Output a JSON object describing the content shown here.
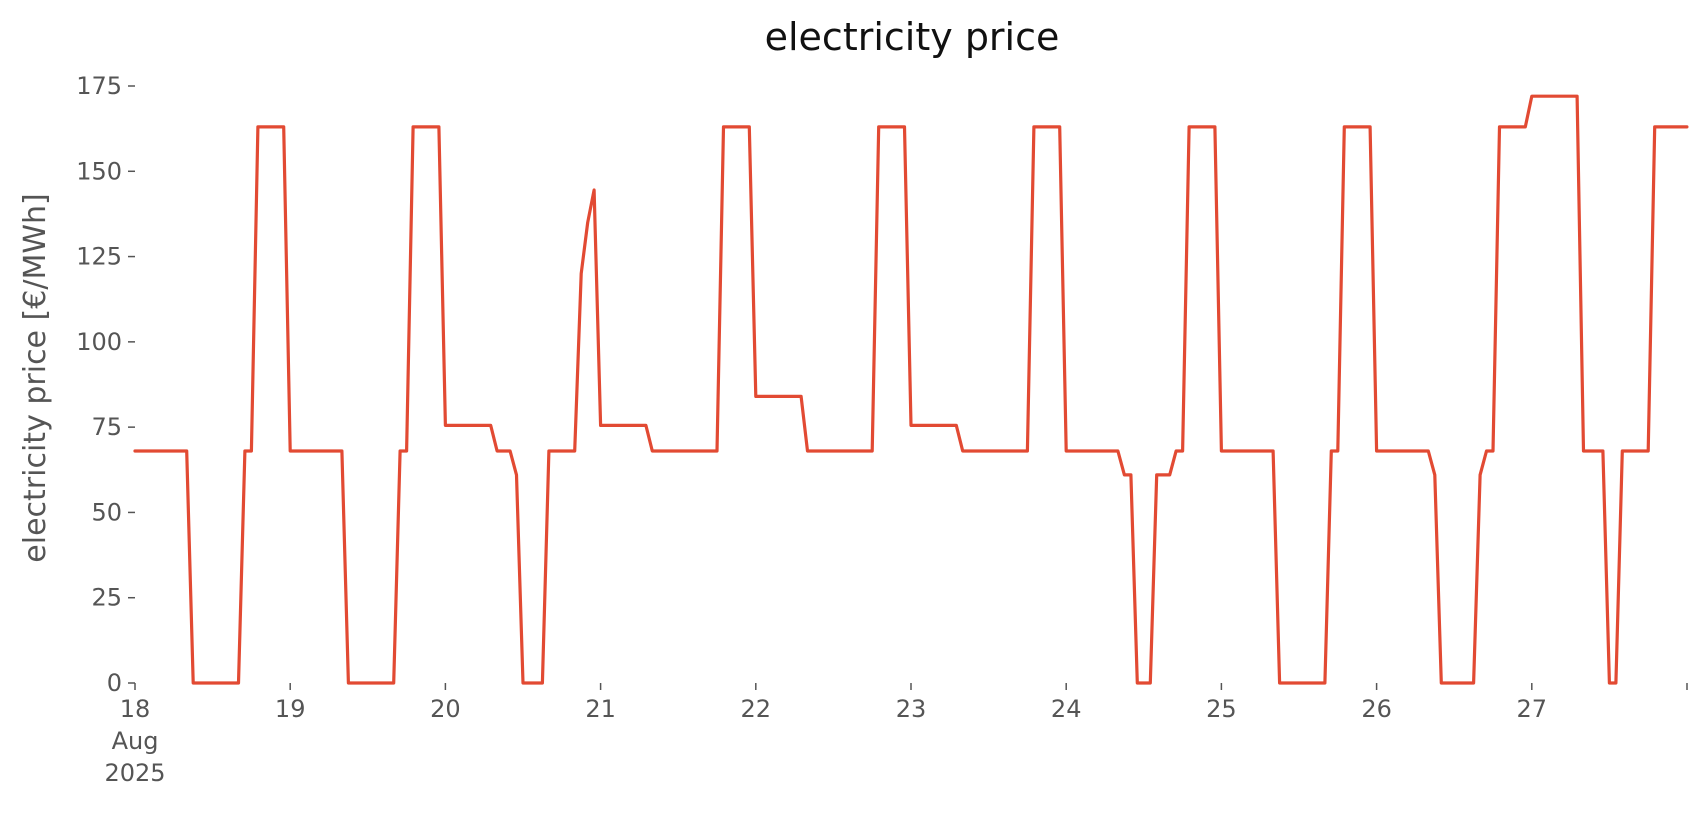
{
  "chart_data": {
    "type": "line",
    "title": "electricity price",
    "xlabel": "",
    "ylabel": "electricity price [€/MWh]",
    "ylim": [
      0,
      175
    ],
    "yticks": [
      0,
      25,
      50,
      75,
      100,
      125,
      150,
      175
    ],
    "xlim": [
      "2025-08-18 00:00",
      "2025-08-28 00:00"
    ],
    "xticks": [
      {
        "value": "2025-08-18",
        "label": [
          "18",
          "Aug",
          "2025"
        ]
      },
      {
        "value": "2025-08-19",
        "label": [
          "19"
        ]
      },
      {
        "value": "2025-08-20",
        "label": [
          "20"
        ]
      },
      {
        "value": "2025-08-21",
        "label": [
          "21"
        ]
      },
      {
        "value": "2025-08-22",
        "label": [
          "22"
        ]
      },
      {
        "value": "2025-08-23",
        "label": [
          "23"
        ]
      },
      {
        "value": "2025-08-24",
        "label": [
          "24"
        ]
      },
      {
        "value": "2025-08-25",
        "label": [
          "25"
        ]
      },
      {
        "value": "2025-08-26",
        "label": [
          "26"
        ]
      },
      {
        "value": "2025-08-27",
        "label": [
          "27"
        ]
      },
      {
        "value": "2025-08-28",
        "label": [
          ""
        ]
      }
    ],
    "grid": false,
    "legend": "none",
    "series": [
      {
        "color": "#e24a33",
        "points": [
          [
            "2025-08-18 00:00",
            68
          ],
          [
            "2025-08-18 08:00",
            68
          ],
          [
            "2025-08-18 09:00",
            0
          ],
          [
            "2025-08-18 16:00",
            0
          ],
          [
            "2025-08-18 17:00",
            68
          ],
          [
            "2025-08-18 18:00",
            68
          ],
          [
            "2025-08-18 19:00",
            163
          ],
          [
            "2025-08-18 23:00",
            163
          ],
          [
            "2025-08-19 00:00",
            68
          ],
          [
            "2025-08-19 08:00",
            68
          ],
          [
            "2025-08-19 09:00",
            0
          ],
          [
            "2025-08-19 16:00",
            0
          ],
          [
            "2025-08-19 17:00",
            68
          ],
          [
            "2025-08-19 18:00",
            68
          ],
          [
            "2025-08-19 19:00",
            163
          ],
          [
            "2025-08-19 23:00",
            163
          ],
          [
            "2025-08-20 00:00",
            75.5
          ],
          [
            "2025-08-20 07:00",
            75.5
          ],
          [
            "2025-08-20 08:00",
            68
          ],
          [
            "2025-08-20 10:00",
            68
          ],
          [
            "2025-08-20 11:00",
            61
          ],
          [
            "2025-08-20 12:00",
            0
          ],
          [
            "2025-08-20 15:00",
            0
          ],
          [
            "2025-08-20 16:00",
            68
          ],
          [
            "2025-08-20 20:00",
            68
          ],
          [
            "2025-08-20 21:00",
            120
          ],
          [
            "2025-08-20 22:00",
            135
          ],
          [
            "2025-08-20 23:00",
            144.5
          ],
          [
            "2025-08-21 00:00",
            75.5
          ],
          [
            "2025-08-21 07:00",
            75.5
          ],
          [
            "2025-08-21 08:00",
            68
          ],
          [
            "2025-08-21 18:00",
            68
          ],
          [
            "2025-08-21 19:00",
            163
          ],
          [
            "2025-08-21 23:00",
            163
          ],
          [
            "2025-08-22 00:00",
            84
          ],
          [
            "2025-08-22 07:00",
            84
          ],
          [
            "2025-08-22 08:00",
            68
          ],
          [
            "2025-08-22 18:00",
            68
          ],
          [
            "2025-08-22 19:00",
            163
          ],
          [
            "2025-08-22 23:00",
            163
          ],
          [
            "2025-08-23 00:00",
            75.5
          ],
          [
            "2025-08-23 07:00",
            75.5
          ],
          [
            "2025-08-23 08:00",
            68
          ],
          [
            "2025-08-23 18:00",
            68
          ],
          [
            "2025-08-23 19:00",
            163
          ],
          [
            "2025-08-23 23:00",
            163
          ],
          [
            "2025-08-24 00:00",
            68
          ],
          [
            "2025-08-24 08:00",
            68
          ],
          [
            "2025-08-24 09:00",
            61
          ],
          [
            "2025-08-24 10:00",
            61
          ],
          [
            "2025-08-24 11:00",
            0
          ],
          [
            "2025-08-24 13:00",
            0
          ],
          [
            "2025-08-24 14:00",
            61
          ],
          [
            "2025-08-24 16:00",
            61
          ],
          [
            "2025-08-24 17:00",
            68
          ],
          [
            "2025-08-24 18:00",
            68
          ],
          [
            "2025-08-24 19:00",
            163
          ],
          [
            "2025-08-24 23:00",
            163
          ],
          [
            "2025-08-25 00:00",
            68
          ],
          [
            "2025-08-25 08:00",
            68
          ],
          [
            "2025-08-25 09:00",
            0
          ],
          [
            "2025-08-25 16:00",
            0
          ],
          [
            "2025-08-25 17:00",
            68
          ],
          [
            "2025-08-25 18:00",
            68
          ],
          [
            "2025-08-25 19:00",
            163
          ],
          [
            "2025-08-25 23:00",
            163
          ],
          [
            "2025-08-26 00:00",
            68
          ],
          [
            "2025-08-26 08:00",
            68
          ],
          [
            "2025-08-26 09:00",
            61
          ],
          [
            "2025-08-26 10:00",
            0
          ],
          [
            "2025-08-26 15:00",
            0
          ],
          [
            "2025-08-26 16:00",
            61
          ],
          [
            "2025-08-26 17:00",
            68
          ],
          [
            "2025-08-26 18:00",
            68
          ],
          [
            "2025-08-26 19:00",
            163
          ],
          [
            "2025-08-26 23:00",
            163
          ],
          [
            "2025-08-27 00:00",
            172
          ],
          [
            "2025-08-27 07:00",
            172
          ],
          [
            "2025-08-27 08:00",
            68
          ],
          [
            "2025-08-27 11:00",
            68
          ],
          [
            "2025-08-27 12:00",
            0
          ],
          [
            "2025-08-27 13:00",
            0
          ],
          [
            "2025-08-27 14:00",
            68
          ],
          [
            "2025-08-27 18:00",
            68
          ],
          [
            "2025-08-27 19:00",
            163
          ],
          [
            "2025-08-27 23:59",
            163
          ]
        ]
      }
    ]
  }
}
